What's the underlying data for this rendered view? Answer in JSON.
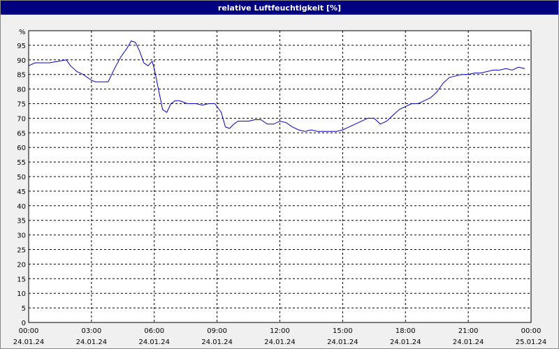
{
  "window": {
    "title": "relative Luftfeuchtigkeit [%]"
  },
  "colors": {
    "title_bar": "#000080",
    "line": "#0000cc",
    "grid": "#000000"
  },
  "chart_data": {
    "type": "line",
    "title": "relative Luftfeuchtigkeit [%]",
    "y_unit_label": "%",
    "ylim": [
      0,
      95
    ],
    "y_ticks": [
      0,
      5,
      10,
      15,
      20,
      25,
      30,
      35,
      40,
      45,
      50,
      55,
      60,
      65,
      70,
      75,
      80,
      85,
      90,
      95
    ],
    "x_hours_range": [
      0,
      24
    ],
    "x_ticks": [
      {
        "hour": 0,
        "time": "00:00",
        "date": "24.01.24"
      },
      {
        "hour": 3,
        "time": "03:00",
        "date": "24.01.24"
      },
      {
        "hour": 6,
        "time": "06:00",
        "date": "24.01.24"
      },
      {
        "hour": 9,
        "time": "09:00",
        "date": "24.01.24"
      },
      {
        "hour": 12,
        "time": "12:00",
        "date": "24.01.24"
      },
      {
        "hour": 15,
        "time": "15:00",
        "date": "24.01.24"
      },
      {
        "hour": 18,
        "time": "18:00",
        "date": "24.01.24"
      },
      {
        "hour": 21,
        "time": "21:00",
        "date": "24.01.24"
      },
      {
        "hour": 24,
        "time": "00:00",
        "date": "25.01.24"
      }
    ],
    "grid": true,
    "series": [
      {
        "x": [
          0,
          0.3,
          0.6,
          1.0,
          1.4,
          1.8,
          2.0,
          2.3,
          2.6,
          3.0,
          3.2,
          3.6,
          3.8,
          4.1,
          4.4,
          4.7,
          4.9,
          5.1,
          5.3,
          5.5,
          5.7,
          5.9,
          6.0,
          6.2,
          6.4,
          6.6,
          6.8,
          7.0,
          7.2,
          7.4,
          7.6,
          7.8,
          8.0,
          8.3,
          8.6,
          8.9,
          9.2,
          9.4,
          9.6,
          9.8,
          10.0,
          10.2,
          10.5,
          10.8,
          11.1,
          11.4,
          11.7,
          12.0,
          12.3,
          12.6,
          12.9,
          13.2,
          13.5,
          13.8,
          14.1,
          14.4,
          14.7,
          15.0,
          15.3,
          15.6,
          15.9,
          16.2,
          16.5,
          16.8,
          17.1,
          17.4,
          17.7,
          18.0,
          18.3,
          18.6,
          18.9,
          19.2,
          19.5,
          19.8,
          20.1,
          20.4,
          20.7,
          21.0,
          21.3,
          21.6,
          21.9,
          22.2,
          22.5,
          22.8,
          23.1,
          23.4,
          23.7
        ],
        "y": [
          88,
          89,
          89,
          89,
          89.5,
          90,
          88,
          86,
          85,
          83,
          82.5,
          82.5,
          82.5,
          87,
          91,
          94,
          96.5,
          96,
          93,
          89,
          88,
          89.5,
          87,
          80,
          73,
          72,
          75,
          76,
          76,
          75.5,
          75,
          75,
          75,
          74.5,
          75,
          75,
          72,
          67,
          66.5,
          68,
          69,
          69,
          69,
          69.5,
          69.5,
          68,
          68,
          69,
          68.5,
          67,
          66,
          65.5,
          66,
          65.5,
          65.5,
          65.5,
          65.5,
          66,
          67,
          68,
          69,
          70,
          70,
          68,
          69,
          71,
          73,
          74,
          75,
          75,
          76,
          77,
          79,
          82,
          84,
          84.5,
          85,
          85,
          85.5,
          85.5,
          86,
          86.5,
          86.5,
          87,
          86.5,
          87.5,
          87
        ]
      }
    ]
  }
}
